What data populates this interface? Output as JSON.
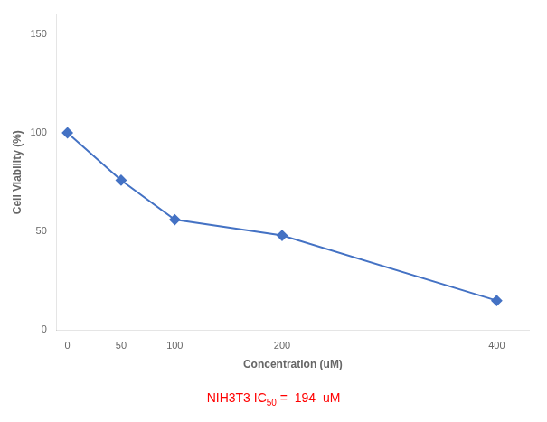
{
  "chart_data": {
    "type": "line",
    "x": [
      0,
      50,
      100,
      200,
      400
    ],
    "values": [
      100,
      76,
      56,
      48,
      15
    ],
    "color": "#4472C4",
    "marker": "diamond",
    "xlabel": "Concentration (uM)",
    "ylabel": "Cell Viability (%)",
    "xlim": [
      -10,
      430
    ],
    "xticks": [
      0,
      50,
      100,
      200,
      400
    ],
    "ylim": [
      0,
      160
    ],
    "yticks": [
      0,
      50,
      100,
      150
    ],
    "grid": false,
    "annotation": {
      "text": "NIH3T3 IC",
      "subscript": "50",
      "text_after": " =  194  uM",
      "color": "#FF0000"
    }
  }
}
